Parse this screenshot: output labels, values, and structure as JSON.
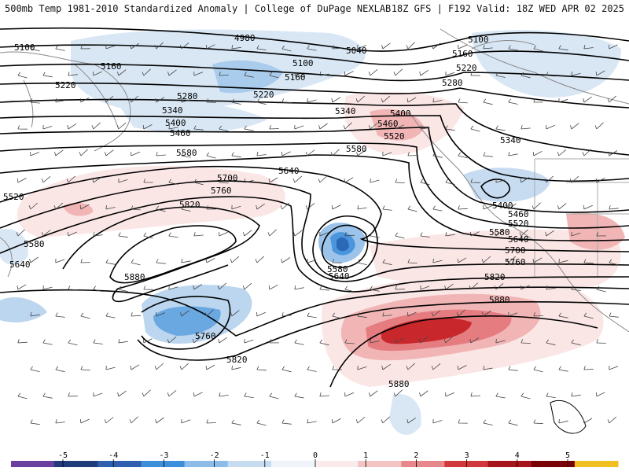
{
  "header": {
    "title_left": "500mb Temp 1981-2010 Standardized Anomaly | College of DuPage NEXLAB",
    "title_right": "18Z GFS | F192 Valid: 18Z WED APR 02 2025"
  },
  "height_contours": {
    "units": "dam-m",
    "labels": [
      "4980",
      "5040",
      "5100",
      "5160",
      "5220",
      "5280",
      "5340",
      "5400",
      "5460",
      "5520",
      "5580",
      "5640",
      "5700",
      "5760",
      "5820",
      "5880"
    ]
  },
  "label_placements": [
    {
      "text": "5100",
      "where": "upper-left"
    },
    {
      "text": "5160",
      "where": "upper-left"
    },
    {
      "text": "5220",
      "where": "upper-left"
    },
    {
      "text": "4980",
      "where": "upper-center"
    },
    {
      "text": "5040",
      "where": "upper-center"
    },
    {
      "text": "5100",
      "where": "upper-center"
    },
    {
      "text": "5160",
      "where": "upper-center"
    },
    {
      "text": "5220",
      "where": "upper-center"
    },
    {
      "text": "5280",
      "where": "upper-left"
    },
    {
      "text": "5340",
      "where": "upper-left"
    },
    {
      "text": "5400",
      "where": "left"
    },
    {
      "text": "5460",
      "where": "left"
    },
    {
      "text": "5580",
      "where": "left"
    },
    {
      "text": "5640",
      "where": "center"
    },
    {
      "text": "5700",
      "where": "left"
    },
    {
      "text": "5760",
      "where": "left"
    },
    {
      "text": "5820",
      "where": "left"
    },
    {
      "text": "5520",
      "where": "far-left"
    },
    {
      "text": "5580",
      "where": "far-left"
    },
    {
      "text": "5640",
      "where": "far-left"
    },
    {
      "text": "5880",
      "where": "left"
    },
    {
      "text": "5340",
      "where": "center"
    },
    {
      "text": "5400",
      "where": "center"
    },
    {
      "text": "5460",
      "where": "center"
    },
    {
      "text": "5520",
      "where": "center"
    },
    {
      "text": "5580",
      "where": "center"
    },
    {
      "text": "5580",
      "where": "center"
    },
    {
      "text": "5640",
      "where": "center"
    },
    {
      "text": "5760",
      "where": "lower-left"
    },
    {
      "text": "5820",
      "where": "lower-left"
    },
    {
      "text": "5100",
      "where": "upper-right"
    },
    {
      "text": "5160",
      "where": "upper-right"
    },
    {
      "text": "5220",
      "where": "upper-right"
    },
    {
      "text": "5280",
      "where": "upper-right"
    },
    {
      "text": "5340",
      "where": "right"
    },
    {
      "text": "5400",
      "where": "right"
    },
    {
      "text": "5460",
      "where": "right"
    },
    {
      "text": "5520",
      "where": "right"
    },
    {
      "text": "5580",
      "where": "right"
    },
    {
      "text": "5640",
      "where": "right"
    },
    {
      "text": "5700",
      "where": "right"
    },
    {
      "text": "5760",
      "where": "right"
    },
    {
      "text": "5820",
      "where": "right"
    },
    {
      "text": "5880",
      "where": "right"
    },
    {
      "text": "5880",
      "where": "lower-center"
    }
  ],
  "colorbar": {
    "ticks": [
      "-5",
      "-4",
      "-3",
      "-2",
      "-1",
      "0",
      "1",
      "2",
      "3",
      "4",
      "5"
    ],
    "colors": [
      "#6a3fa0",
      "#213a7a",
      "#2f5fae",
      "#3d8fdc",
      "#8cbde8",
      "#c6dcf0",
      "#eef4fa",
      "#fbeaea",
      "#f3c4c4",
      "#e8878a",
      "#d0383c",
      "#a6141c",
      "#7a0008",
      "#f0c020"
    ]
  },
  "colors": {
    "cold_light": "#cfe0f2",
    "cold_mid": "#9cc4ea",
    "cold_strong": "#4a95dc",
    "cold_core": "#2b68b8",
    "warm_light": "#fbe6e6",
    "warm_mid": "#f1b5b6",
    "warm_strong": "#e57d80",
    "warm_core": "#c8282c",
    "contour": "#000000",
    "coast": "#7a7a7a"
  }
}
